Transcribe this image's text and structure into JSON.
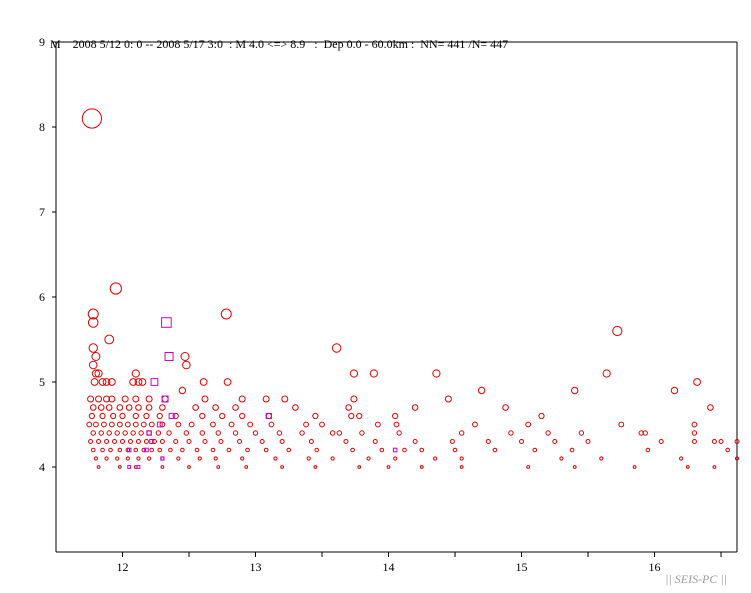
{
  "header": {
    "ylabel": "M",
    "text": "2008 5/12 0: 0 -- 2008 5/17 3:0  : M 4.0 <=> 8.9   :  Dep 0.0 - 60.0km :  NN= 441 /N= 447"
  },
  "watermark": "|| SEIS-PC ||",
  "chart_data": {
    "type": "scatter",
    "title": "",
    "xlabel": "",
    "ylabel": "M",
    "xlim": [
      11.5,
      16.62
    ],
    "ylim": [
      3.0,
      9.0
    ],
    "xticks": [
      12,
      13,
      14,
      15,
      16
    ],
    "yticks": [
      4,
      5,
      6,
      7,
      8,
      9
    ],
    "grid": false,
    "colors": {
      "main": "#dd0000",
      "secondary": "#cc00cc"
    },
    "marker_legend": "marker size scales with magnitude",
    "series": [
      {
        "marker": "circle",
        "color": "#dd0000",
        "points": [
          [
            11.77,
            8.1
          ],
          [
            11.95,
            6.1
          ],
          [
            11.78,
            5.8
          ],
          [
            11.78,
            5.7
          ],
          [
            11.9,
            5.5
          ],
          [
            11.78,
            5.4
          ],
          [
            11.8,
            5.3
          ],
          [
            11.78,
            5.2
          ],
          [
            11.8,
            5.1
          ],
          [
            11.82,
            5.1
          ],
          [
            11.79,
            5.0
          ],
          [
            11.85,
            5.0
          ],
          [
            11.88,
            5.0
          ],
          [
            11.92,
            5.0
          ],
          [
            12.08,
            5.0
          ],
          [
            12.12,
            5.0
          ],
          [
            12.15,
            5.0
          ],
          [
            12.1,
            5.1
          ],
          [
            12.47,
            5.3
          ],
          [
            12.48,
            5.2
          ],
          [
            12.61,
            5.0
          ],
          [
            12.78,
            5.8
          ],
          [
            12.79,
            5.0
          ],
          [
            13.61,
            5.4
          ],
          [
            13.74,
            5.1
          ],
          [
            13.89,
            5.1
          ],
          [
            14.36,
            5.1
          ],
          [
            15.64,
            5.1
          ],
          [
            15.72,
            5.6
          ],
          [
            16.32,
            5.0
          ],
          [
            11.76,
            4.8
          ],
          [
            11.82,
            4.8
          ],
          [
            11.88,
            4.8
          ],
          [
            11.92,
            4.8
          ],
          [
            12.02,
            4.8
          ],
          [
            12.1,
            4.8
          ],
          [
            12.2,
            4.8
          ],
          [
            12.32,
            4.8
          ],
          [
            12.62,
            4.8
          ],
          [
            12.9,
            4.8
          ],
          [
            13.08,
            4.8
          ],
          [
            13.74,
            4.8
          ],
          [
            14.45,
            4.8
          ],
          [
            15.4,
            4.9
          ],
          [
            16.15,
            4.9
          ],
          [
            14.7,
            4.9
          ],
          [
            13.22,
            4.8
          ],
          [
            12.45,
            4.9
          ],
          [
            11.78,
            4.7
          ],
          [
            11.84,
            4.7
          ],
          [
            11.9,
            4.7
          ],
          [
            11.98,
            4.7
          ],
          [
            12.05,
            4.7
          ],
          [
            12.12,
            4.7
          ],
          [
            12.2,
            4.7
          ],
          [
            12.3,
            4.7
          ],
          [
            12.55,
            4.7
          ],
          [
            12.7,
            4.7
          ],
          [
            12.85,
            4.7
          ],
          [
            13.3,
            4.7
          ],
          [
            13.7,
            4.7
          ],
          [
            14.2,
            4.7
          ],
          [
            14.88,
            4.7
          ],
          [
            16.42,
            4.7
          ],
          [
            11.77,
            4.6
          ],
          [
            11.85,
            4.6
          ],
          [
            11.93,
            4.6
          ],
          [
            12.0,
            4.6
          ],
          [
            12.1,
            4.6
          ],
          [
            12.18,
            4.6
          ],
          [
            12.28,
            4.6
          ],
          [
            12.4,
            4.6
          ],
          [
            12.6,
            4.6
          ],
          [
            12.75,
            4.6
          ],
          [
            12.9,
            4.6
          ],
          [
            13.1,
            4.6
          ],
          [
            13.45,
            4.6
          ],
          [
            13.72,
            4.6
          ],
          [
            13.78,
            4.6
          ],
          [
            14.05,
            4.6
          ],
          [
            15.15,
            4.6
          ],
          [
            11.75,
            4.5
          ],
          [
            11.8,
            4.5
          ],
          [
            11.86,
            4.5
          ],
          [
            11.92,
            4.5
          ],
          [
            11.98,
            4.5
          ],
          [
            12.04,
            4.5
          ],
          [
            12.1,
            4.5
          ],
          [
            12.16,
            4.5
          ],
          [
            12.22,
            4.5
          ],
          [
            12.3,
            4.5
          ],
          [
            12.42,
            4.5
          ],
          [
            12.52,
            4.5
          ],
          [
            12.68,
            4.5
          ],
          [
            12.82,
            4.5
          ],
          [
            12.96,
            4.5
          ],
          [
            13.12,
            4.5
          ],
          [
            13.38,
            4.5
          ],
          [
            13.5,
            4.5
          ],
          [
            13.92,
            4.5
          ],
          [
            14.06,
            4.5
          ],
          [
            14.65,
            4.5
          ],
          [
            15.05,
            4.5
          ],
          [
            15.75,
            4.5
          ],
          [
            16.3,
            4.5
          ],
          [
            11.78,
            4.4
          ],
          [
            11.84,
            4.4
          ],
          [
            11.9,
            4.4
          ],
          [
            11.96,
            4.4
          ],
          [
            12.02,
            4.4
          ],
          [
            12.08,
            4.4
          ],
          [
            12.14,
            4.4
          ],
          [
            12.2,
            4.4
          ],
          [
            12.27,
            4.4
          ],
          [
            12.35,
            4.4
          ],
          [
            12.48,
            4.4
          ],
          [
            12.6,
            4.4
          ],
          [
            12.72,
            4.4
          ],
          [
            12.85,
            4.4
          ],
          [
            13.0,
            4.4
          ],
          [
            13.18,
            4.4
          ],
          [
            13.35,
            4.4
          ],
          [
            13.58,
            4.4
          ],
          [
            13.63,
            4.4
          ],
          [
            13.8,
            4.4
          ],
          [
            14.08,
            4.4
          ],
          [
            14.55,
            4.4
          ],
          [
            14.92,
            4.4
          ],
          [
            15.2,
            4.4
          ],
          [
            15.45,
            4.4
          ],
          [
            15.9,
            4.4
          ],
          [
            15.93,
            4.4
          ],
          [
            16.3,
            4.4
          ],
          [
            11.76,
            4.3
          ],
          [
            11.82,
            4.3
          ],
          [
            11.88,
            4.3
          ],
          [
            11.94,
            4.3
          ],
          [
            12.0,
            4.3
          ],
          [
            12.06,
            4.3
          ],
          [
            12.12,
            4.3
          ],
          [
            12.18,
            4.3
          ],
          [
            12.24,
            4.3
          ],
          [
            12.3,
            4.3
          ],
          [
            12.4,
            4.3
          ],
          [
            12.5,
            4.3
          ],
          [
            12.62,
            4.3
          ],
          [
            12.74,
            4.3
          ],
          [
            12.88,
            4.3
          ],
          [
            13.05,
            4.3
          ],
          [
            13.2,
            4.3
          ],
          [
            13.42,
            4.3
          ],
          [
            13.68,
            4.3
          ],
          [
            13.9,
            4.3
          ],
          [
            14.2,
            4.3
          ],
          [
            14.48,
            4.3
          ],
          [
            14.75,
            4.3
          ],
          [
            15.0,
            4.3
          ],
          [
            15.25,
            4.3
          ],
          [
            15.5,
            4.3
          ],
          [
            16.05,
            4.3
          ],
          [
            16.3,
            4.3
          ],
          [
            16.45,
            4.3
          ],
          [
            16.5,
            4.3
          ],
          [
            16.62,
            4.3
          ],
          [
            11.78,
            4.2
          ],
          [
            11.85,
            4.2
          ],
          [
            11.91,
            4.2
          ],
          [
            11.98,
            4.2
          ],
          [
            12.04,
            4.2
          ],
          [
            12.1,
            4.2
          ],
          [
            12.16,
            4.2
          ],
          [
            12.22,
            4.2
          ],
          [
            12.28,
            4.2
          ],
          [
            12.36,
            4.2
          ],
          [
            12.45,
            4.2
          ],
          [
            12.56,
            4.2
          ],
          [
            12.68,
            4.2
          ],
          [
            12.8,
            4.2
          ],
          [
            12.94,
            4.2
          ],
          [
            13.08,
            4.2
          ],
          [
            13.25,
            4.2
          ],
          [
            13.46,
            4.2
          ],
          [
            13.73,
            4.2
          ],
          [
            13.95,
            4.2
          ],
          [
            14.12,
            4.2
          ],
          [
            14.25,
            4.2
          ],
          [
            14.5,
            4.2
          ],
          [
            14.8,
            4.2
          ],
          [
            15.1,
            4.2
          ],
          [
            15.38,
            4.2
          ],
          [
            15.95,
            4.2
          ],
          [
            16.55,
            4.2
          ],
          [
            11.8,
            4.1
          ],
          [
            11.88,
            4.1
          ],
          [
            11.96,
            4.1
          ],
          [
            12.04,
            4.1
          ],
          [
            12.12,
            4.1
          ],
          [
            12.2,
            4.1
          ],
          [
            12.3,
            4.1
          ],
          [
            12.42,
            4.1
          ],
          [
            12.58,
            4.1
          ],
          [
            12.7,
            4.1
          ],
          [
            12.9,
            4.1
          ],
          [
            13.15,
            4.1
          ],
          [
            13.4,
            4.1
          ],
          [
            13.58,
            4.1
          ],
          [
            13.85,
            4.1
          ],
          [
            14.05,
            4.1
          ],
          [
            14.35,
            4.1
          ],
          [
            14.55,
            4.1
          ],
          [
            15.3,
            4.1
          ],
          [
            15.6,
            4.1
          ],
          [
            16.2,
            4.1
          ],
          [
            16.62,
            4.1
          ],
          [
            11.82,
            4.0
          ],
          [
            11.98,
            4.0
          ],
          [
            12.1,
            4.0
          ],
          [
            12.3,
            4.0
          ],
          [
            12.5,
            4.0
          ],
          [
            12.72,
            4.0
          ],
          [
            12.93,
            4.0
          ],
          [
            13.2,
            4.0
          ],
          [
            13.45,
            4.0
          ],
          [
            13.78,
            4.0
          ],
          [
            14.0,
            4.0
          ],
          [
            14.25,
            4.0
          ],
          [
            14.55,
            4.0
          ],
          [
            15.05,
            4.0
          ],
          [
            15.4,
            4.0
          ],
          [
            15.85,
            4.0
          ],
          [
            16.25,
            4.0
          ],
          [
            16.45,
            4.0
          ]
        ]
      },
      {
        "marker": "square",
        "color": "#cc00cc",
        "points": [
          [
            12.33,
            5.7
          ],
          [
            12.35,
            5.3
          ],
          [
            12.24,
            5.0
          ],
          [
            12.37,
            4.6
          ],
          [
            12.28,
            4.5
          ],
          [
            12.22,
            4.3
          ],
          [
            12.18,
            4.2
          ],
          [
            12.05,
            4.2
          ],
          [
            12.3,
            4.1
          ],
          [
            12.05,
            4.0
          ],
          [
            12.12,
            4.0
          ],
          [
            13.1,
            4.6
          ],
          [
            14.05,
            4.2
          ],
          [
            12.32,
            4.8
          ],
          [
            12.2,
            4.4
          ]
        ]
      }
    ]
  }
}
